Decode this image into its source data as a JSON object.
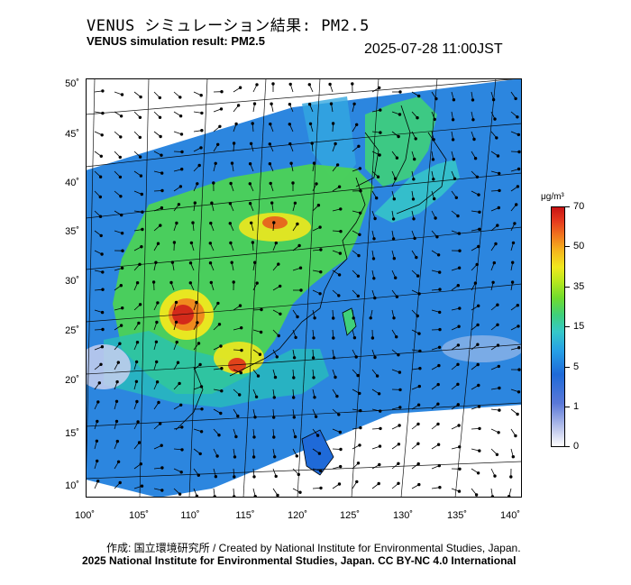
{
  "header": {
    "title_jp": "VENUS シミュレーション結果: PM2.5",
    "title_en": "VENUS simulation result: PM2.5",
    "timestamp": "2025-07-28 11:00JST"
  },
  "map": {
    "lat_labels": [
      "50˚",
      "45˚",
      "40˚",
      "35˚",
      "30˚",
      "25˚",
      "20˚",
      "15˚",
      "10˚"
    ],
    "lon_labels": [
      "100˚",
      "105˚",
      "110˚",
      "115˚",
      "120˚",
      "125˚",
      "130˚",
      "135˚",
      "140˚"
    ],
    "background_fill": "#2c86df",
    "land_line_color": "#000000"
  },
  "colorbar": {
    "unit": "μg/m³",
    "labels": [
      "70",
      "50",
      "35",
      "15",
      "5",
      "1",
      "0"
    ],
    "colors": [
      "#ffffff",
      "#5a78d8",
      "#1f6ad8",
      "#36c8c8",
      "#3fd07a",
      "#b8e81e",
      "#f0e81e",
      "#f0781e",
      "#c81414"
    ]
  },
  "footer": {
    "credit_line": "作成: 国立環境研究所 / Created by National Institute for Environmental Studies, Japan.",
    "license_line": "2025 National Institute for Environmental Studies, Japan. CC BY-NC 4.0 International"
  }
}
